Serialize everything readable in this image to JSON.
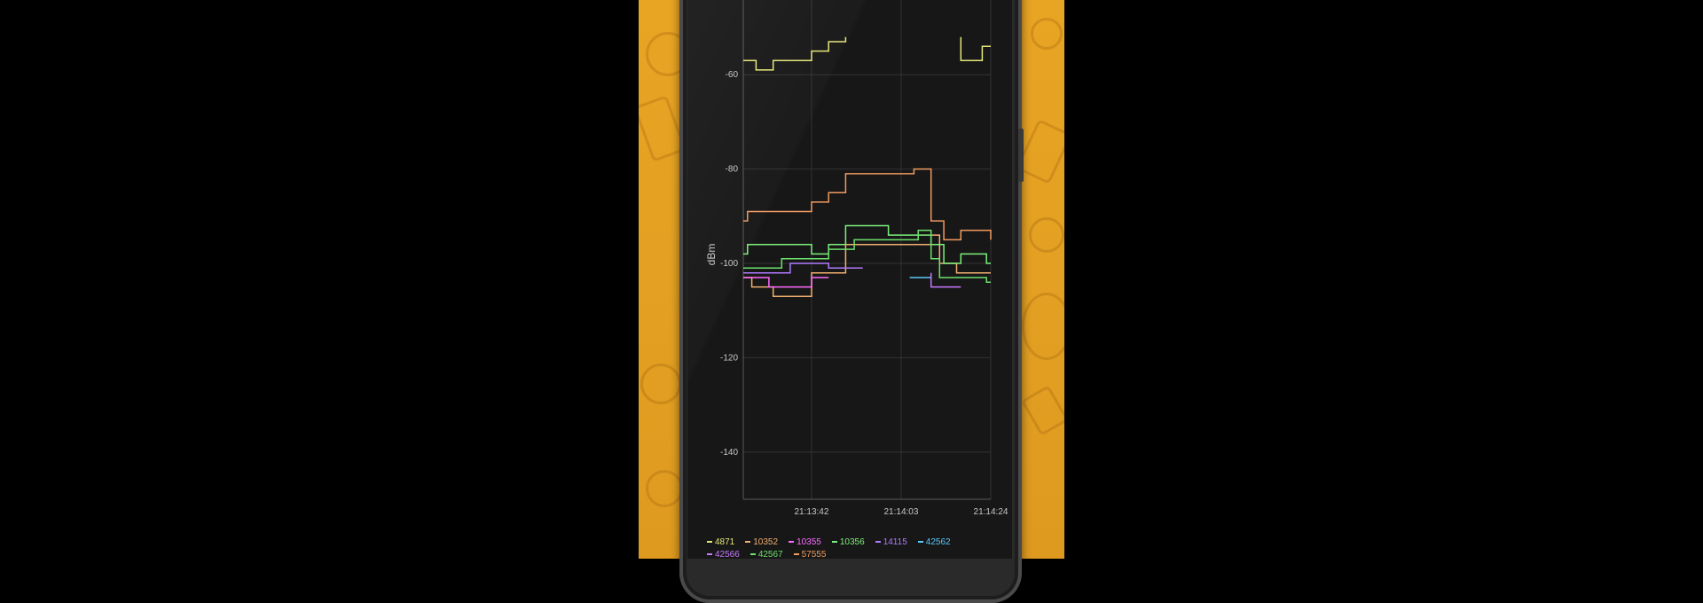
{
  "chart_data": {
    "type": "line",
    "step": true,
    "title": "",
    "xlabel": "",
    "ylabel": "dBm",
    "ylim": [
      -150,
      -53
    ],
    "yticks": [
      -60,
      -80,
      -100,
      -120,
      -140
    ],
    "xlim": [
      0,
      58
    ],
    "xticks": [
      {
        "value": 16,
        "label": "21:13:42"
      },
      {
        "value": 37,
        "label": "21:14:03"
      },
      {
        "value": 58,
        "label": "21:14:24"
      }
    ],
    "grid": true,
    "legend_position": "bottom",
    "series": [
      {
        "name": "4871",
        "color": "#e6e67a",
        "segments": [
          [
            [
              0,
              -57
            ],
            [
              3,
              -57
            ],
            [
              3,
              -59
            ],
            [
              7,
              -59
            ],
            [
              7,
              -57
            ],
            [
              16,
              -57
            ],
            [
              16,
              -55
            ],
            [
              20,
              -55
            ],
            [
              20,
              -53
            ],
            [
              24,
              -53
            ],
            [
              24,
              -52
            ]
          ],
          [
            [
              51,
              -52
            ],
            [
              51,
              -57
            ],
            [
              56,
              -57
            ],
            [
              56,
              -54
            ],
            [
              58,
              -54
            ]
          ]
        ]
      },
      {
        "name": "10352",
        "color": "#f0b070",
        "segments": [
          [
            [
              0,
              -103
            ],
            [
              2,
              -103
            ],
            [
              2,
              -105
            ],
            [
              7,
              -105
            ],
            [
              7,
              -107
            ],
            [
              16,
              -107
            ],
            [
              16,
              -102
            ],
            [
              24,
              -102
            ],
            [
              24,
              -96
            ],
            [
              44,
              -96
            ],
            [
              44,
              -94
            ],
            [
              46,
              -94
            ],
            [
              46,
              -100
            ],
            [
              50,
              -100
            ],
            [
              50,
              -102
            ],
            [
              58,
              -102
            ]
          ]
        ]
      },
      {
        "name": "10355",
        "color": "#ff6aff",
        "segments": [
          [
            [
              0,
              -103
            ],
            [
              6,
              -103
            ],
            [
              6,
              -105
            ],
            [
              16,
              -105
            ],
            [
              16,
              -103
            ],
            [
              20,
              -103
            ]
          ]
        ]
      },
      {
        "name": "10356",
        "color": "#7cf07c",
        "segments": [
          [
            [
              0,
              -98
            ],
            [
              1,
              -98
            ],
            [
              1,
              -96
            ],
            [
              16,
              -96
            ],
            [
              16,
              -98
            ],
            [
              20,
              -98
            ],
            [
              20,
              -96
            ],
            [
              24,
              -96
            ],
            [
              24,
              -92
            ],
            [
              34,
              -92
            ],
            [
              34,
              -94
            ],
            [
              44,
              -94
            ],
            [
              44,
              -96
            ],
            [
              47,
              -96
            ],
            [
              47,
              -100
            ],
            [
              51,
              -100
            ],
            [
              51,
              -98
            ],
            [
              57,
              -98
            ],
            [
              57,
              -100
            ],
            [
              58,
              -100
            ]
          ]
        ]
      },
      {
        "name": "14115",
        "color": "#b07aff",
        "segments": [
          [
            [
              0,
              -102
            ],
            [
              11,
              -102
            ],
            [
              11,
              -100
            ],
            [
              20,
              -100
            ],
            [
              20,
              -101
            ],
            [
              28,
              -101
            ]
          ]
        ]
      },
      {
        "name": "42562",
        "color": "#5ac8fa",
        "segments": [
          [
            [
              39,
              -103
            ],
            [
              44,
              -103
            ]
          ]
        ]
      },
      {
        "name": "42566",
        "color": "#c878ff",
        "segments": [
          [
            [
              44,
              -102
            ],
            [
              44,
              -105
            ],
            [
              51,
              -105
            ]
          ]
        ]
      },
      {
        "name": "42567",
        "color": "#6ee06e",
        "segments": [
          [
            [
              0,
              -101
            ],
            [
              9,
              -101
            ],
            [
              9,
              -99
            ],
            [
              20,
              -99
            ],
            [
              20,
              -97
            ],
            [
              26,
              -97
            ],
            [
              26,
              -95
            ],
            [
              41,
              -95
            ],
            [
              41,
              -93
            ],
            [
              44,
              -93
            ],
            [
              44,
              -99
            ],
            [
              46,
              -99
            ],
            [
              46,
              -103
            ],
            [
              57,
              -103
            ],
            [
              57,
              -104
            ],
            [
              58,
              -104
            ]
          ]
        ]
      },
      {
        "name": "57555",
        "color": "#f09a60",
        "segments": [
          [
            [
              0,
              -91
            ],
            [
              1,
              -91
            ],
            [
              1,
              -89
            ],
            [
              16,
              -89
            ],
            [
              16,
              -87
            ],
            [
              20,
              -87
            ],
            [
              20,
              -85
            ],
            [
              24,
              -85
            ],
            [
              24,
              -81
            ],
            [
              40,
              -81
            ],
            [
              40,
              -80
            ],
            [
              44,
              -80
            ],
            [
              44,
              -91
            ],
            [
              47,
              -91
            ],
            [
              47,
              -95
            ],
            [
              51,
              -95
            ],
            [
              51,
              -93
            ],
            [
              58,
              -93
            ],
            [
              58,
              -95
            ]
          ]
        ]
      }
    ]
  }
}
